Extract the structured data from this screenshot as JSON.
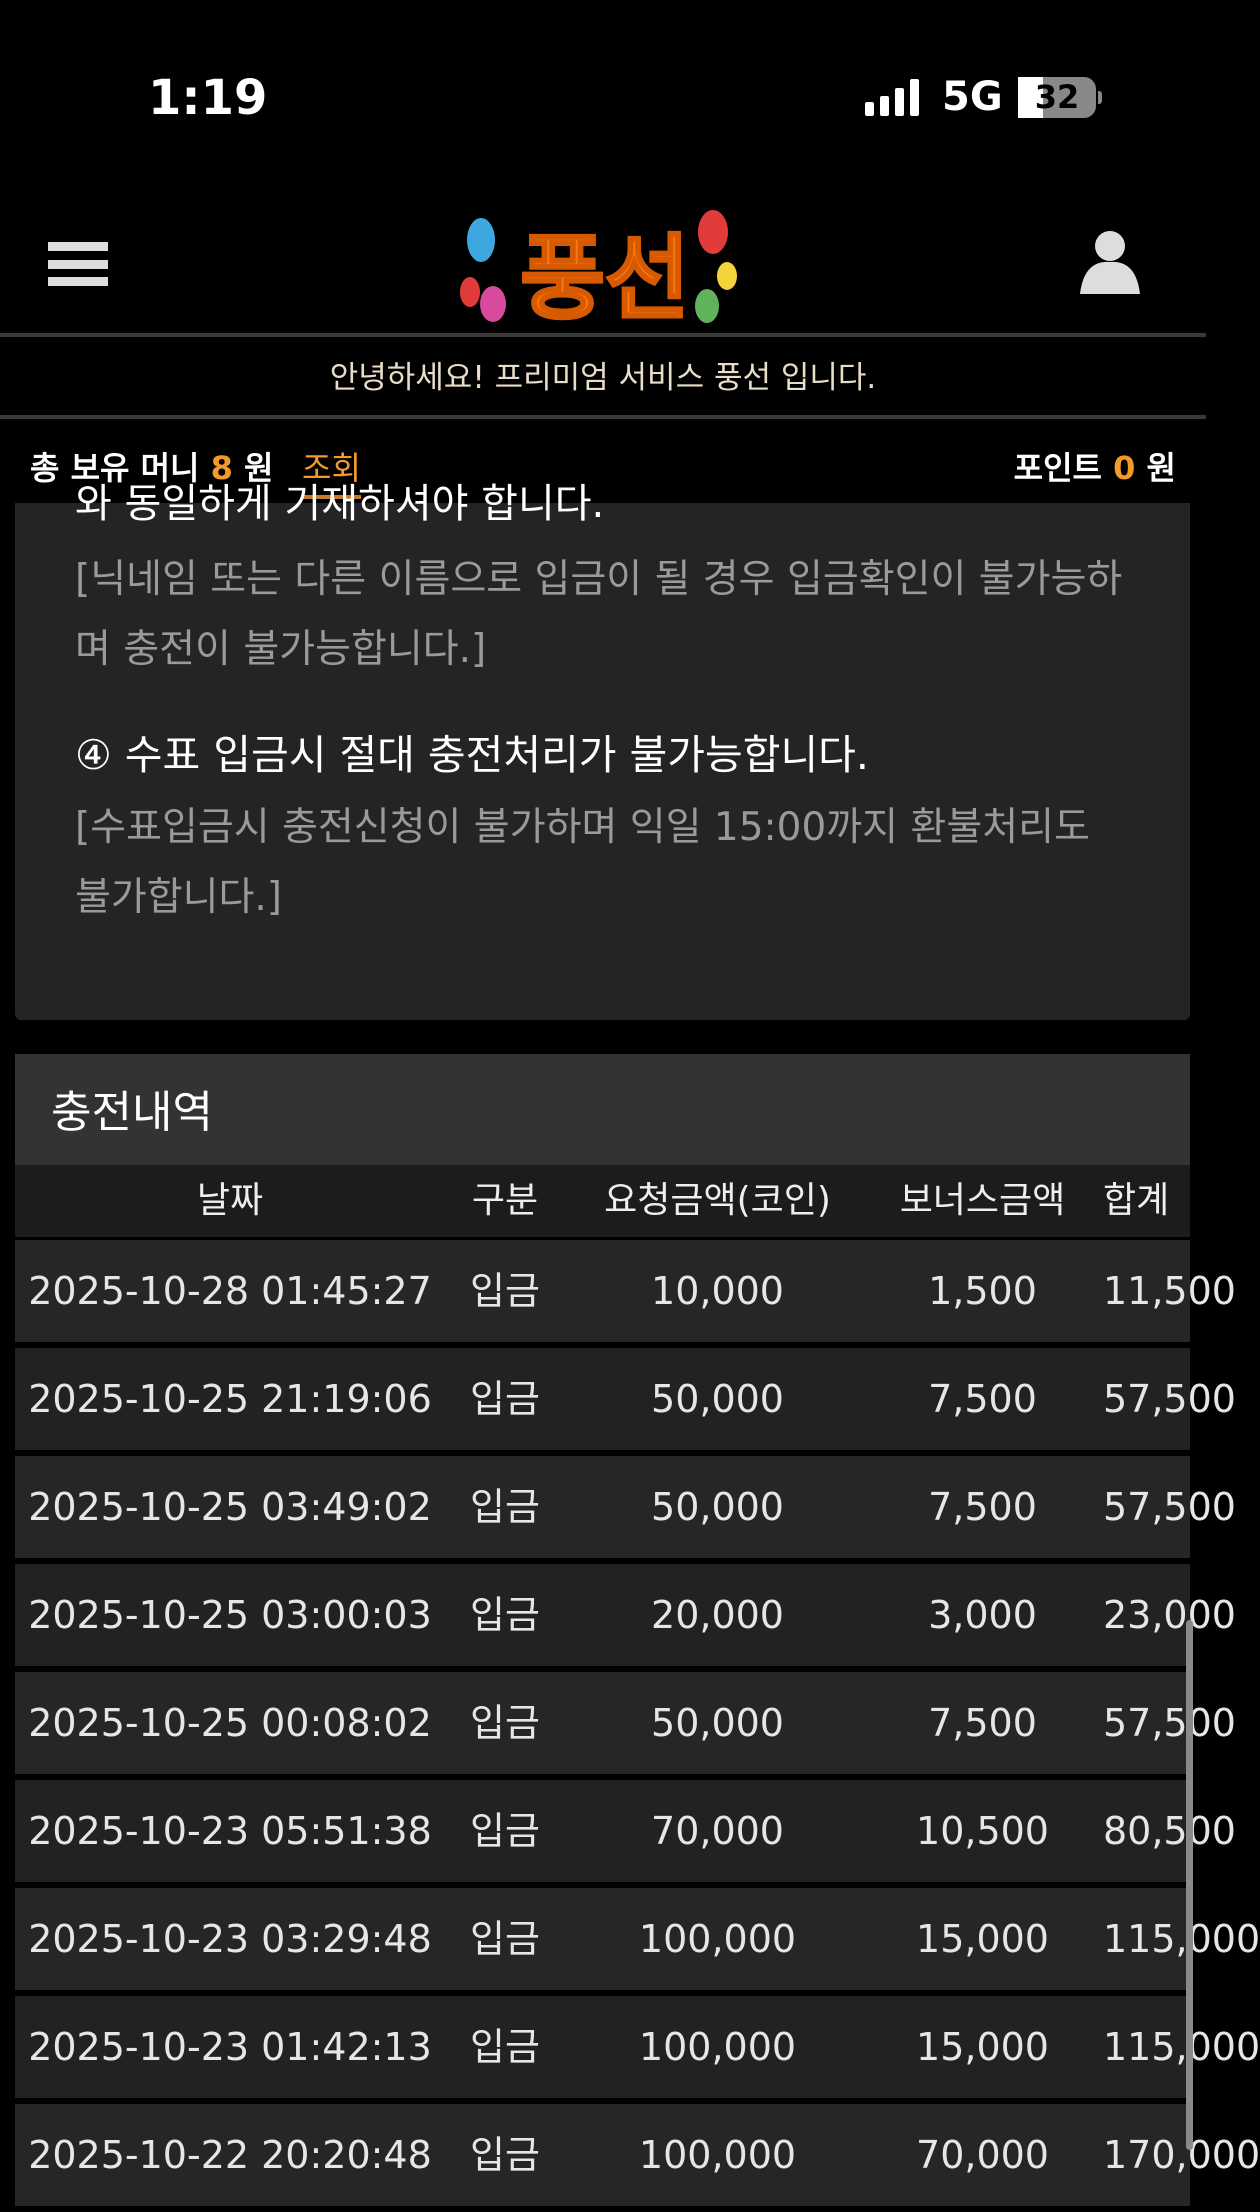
{
  "status_bar": {
    "time": "1:19",
    "network": "5G",
    "battery": "32",
    "battery_level": 0.32
  },
  "header": {
    "logo_text": "풍선",
    "menu_icon": "hamburger-icon",
    "user_icon": "user-icon"
  },
  "greeting": "안녕하세요! 프리미엄 서비스 풍선 입니다.",
  "balance": {
    "label": "총 보유 머니",
    "amount": "8",
    "unit": "원",
    "inquiry": "조회",
    "point_label": "포인트",
    "point_amount": "0",
    "point_unit": "원"
  },
  "notice": {
    "cut_line": "와 동일하게 기재하셔야 합니다.",
    "note3": "[닉네임 또는 다른 이름으로 입금이 될 경우 입금확인이 불가능하며 충전이 불가능합니다.]",
    "item4": "④ 수표 입금시 절대 충전처리가 불가능합니다.",
    "note4": "[수표입금시 충전신청이 불가하며 익일 15:00까지 환불처리도 불가합니다.]"
  },
  "history": {
    "title": "충전내역",
    "columns": [
      "날짜",
      "구분",
      "요청금액(코인)",
      "보너스금액",
      "합계"
    ],
    "rows": [
      [
        "2025-10-28 01:45:27",
        "입금",
        "10,000",
        "1,500",
        "11,500"
      ],
      [
        "2025-10-25 21:19:06",
        "입금",
        "50,000",
        "7,500",
        "57,500"
      ],
      [
        "2025-10-25 03:49:02",
        "입금",
        "50,000",
        "7,500",
        "57,500"
      ],
      [
        "2025-10-25 03:00:03",
        "입금",
        "20,000",
        "3,000",
        "23,000"
      ],
      [
        "2025-10-25 00:08:02",
        "입금",
        "50,000",
        "7,500",
        "57,500"
      ],
      [
        "2025-10-23 05:51:38",
        "입금",
        "70,000",
        "10,500",
        "80,500"
      ],
      [
        "2025-10-23 03:29:48",
        "입금",
        "100,000",
        "15,000",
        "115,000"
      ],
      [
        "2025-10-23 01:42:13",
        "입금",
        "100,000",
        "15,000",
        "115,000"
      ],
      [
        "2025-10-22 20:20:48",
        "입금",
        "100,000",
        "70,000",
        "170,000"
      ]
    ]
  },
  "colors": {
    "accent": "#f39a2b",
    "card": "#242426",
    "background": "#000000"
  }
}
